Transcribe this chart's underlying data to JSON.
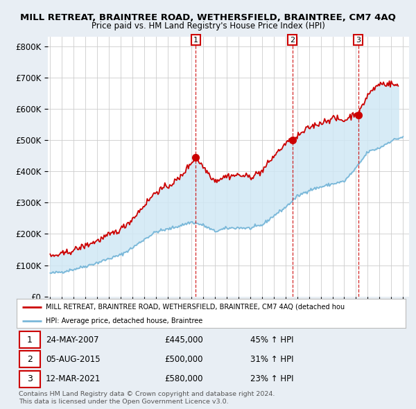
{
  "title": "MILL RETREAT, BRAINTREE ROAD, WETHERSFIELD, BRAINTREE, CM7 4AQ",
  "subtitle": "Price paid vs. HM Land Registry's House Price Index (HPI)",
  "ylabel_ticks": [
    "£0",
    "£100K",
    "£200K",
    "£300K",
    "£400K",
    "£500K",
    "£600K",
    "£700K",
    "£800K"
  ],
  "ytick_vals": [
    0,
    100000,
    200000,
    300000,
    400000,
    500000,
    600000,
    700000,
    800000
  ],
  "ylim": [
    0,
    830000
  ],
  "xlim_start": 1994.8,
  "xlim_end": 2025.5,
  "hpi_color": "#7ab8d9",
  "price_color": "#cc0000",
  "fill_color": "#d0e8f5",
  "transactions": [
    {
      "date_x": 2007.38,
      "price": 445000,
      "label": "1"
    },
    {
      "date_x": 2015.59,
      "price": 500000,
      "label": "2"
    },
    {
      "date_x": 2021.19,
      "price": 580000,
      "label": "3"
    }
  ],
  "transaction_table": [
    {
      "num": "1",
      "date": "24-MAY-2007",
      "price": "£445,000",
      "hpi": "45% ↑ HPI"
    },
    {
      "num": "2",
      "date": "05-AUG-2015",
      "price": "£500,000",
      "hpi": "31% ↑ HPI"
    },
    {
      "num": "3",
      "date": "12-MAR-2021",
      "price": "£580,000",
      "hpi": "23% ↑ HPI"
    }
  ],
  "legend_label_red": "MILL RETREAT, BRAINTREE ROAD, WETHERSFIELD, BRAINTREE, CM7 4AQ (detached hou",
  "legend_label_blue": "HPI: Average price, detached house, Braintree",
  "footer1": "Contains HM Land Registry data © Crown copyright and database right 2024.",
  "footer2": "This data is licensed under the Open Government Licence v3.0.",
  "background_color": "#e8eef4",
  "plot_bg_color": "#ffffff"
}
